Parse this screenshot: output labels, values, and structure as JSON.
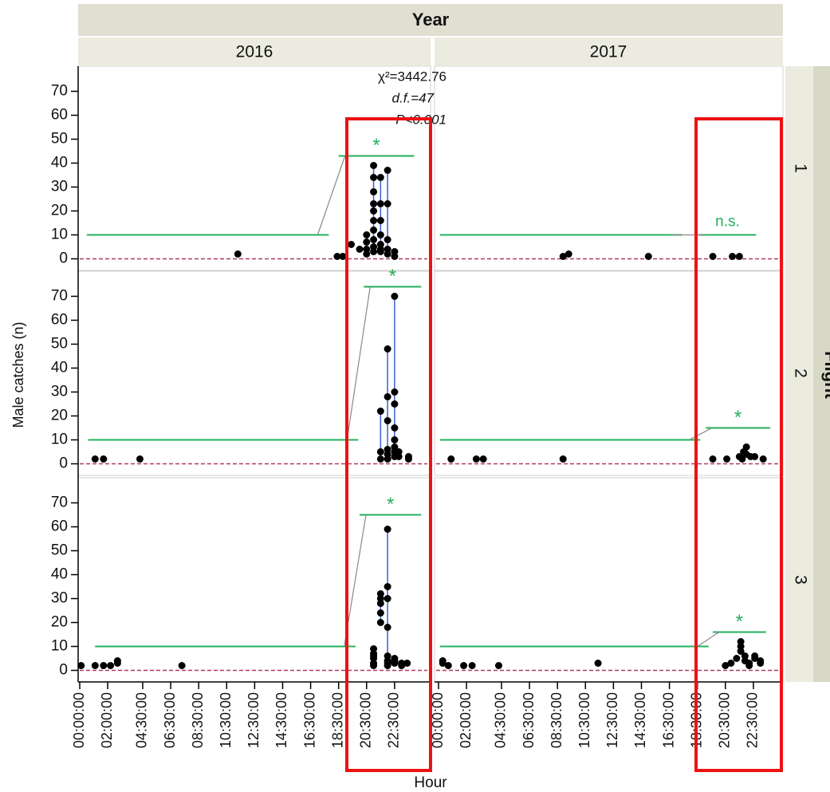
{
  "chart_data": {
    "type": "scatter",
    "title": "Year",
    "columns": [
      "2016",
      "2017"
    ],
    "row_title": "Flight",
    "rows": [
      "1",
      "2",
      "3"
    ],
    "xlabel": "Hour",
    "ylabel": "Male catches (n)",
    "annotations": [
      "χ²=3442.76",
      "d.f.=47",
      "P<0.001"
    ],
    "xlim": [
      0,
      24.5
    ],
    "ylim": [
      -4.5,
      80.5
    ],
    "yticks": [
      0,
      10,
      20,
      30,
      40,
      50,
      60,
      70
    ],
    "xticks": [
      {
        "value": 0,
        "label": "00:00:00"
      },
      {
        "value": 2,
        "label": "02:00:00"
      },
      {
        "value": 4.5,
        "label": "04:30:00"
      },
      {
        "value": 6.5,
        "label": "06:30:00"
      },
      {
        "value": 8.5,
        "label": "08:30:00"
      },
      {
        "value": 10.5,
        "label": "10:30:00"
      },
      {
        "value": 12.5,
        "label": "12:30:00"
      },
      {
        "value": 14.5,
        "label": "14:30:00"
      },
      {
        "value": 16.5,
        "label": "16:30:00"
      },
      {
        "value": 18.5,
        "label": "18:30:00"
      },
      {
        "value": 20.5,
        "label": "20:30:00"
      },
      {
        "value": 22.5,
        "label": "22:30:00"
      }
    ],
    "reference_line": 0,
    "point_color": "#000000",
    "range_color": "#3a5fcd",
    "fit_color": "#22b05a",
    "reference_color": "#b03a5a",
    "panels": [
      [
        {
          "x": [
            11.3,
            18.4,
            18.8,
            19.4,
            20.0,
            20.5,
            20.5,
            20.5,
            20.5,
            21.0,
            21.0,
            21.0,
            21.0,
            21.0,
            21.0,
            21.0,
            21.0,
            21.0,
            21.0,
            21.5,
            21.5,
            21.5,
            21.5,
            21.5,
            21.5,
            21.5,
            22.0,
            22.0,
            22.0,
            22.0,
            22.0,
            22.5,
            22.5
          ],
          "y": [
            2,
            1,
            1,
            6,
            4,
            10,
            7,
            4,
            2,
            39,
            34,
            28,
            23,
            20,
            16,
            12,
            8,
            5,
            3,
            34,
            23,
            16,
            10,
            6,
            4,
            3,
            37,
            23,
            8,
            4,
            2,
            3,
            1
          ],
          "fits": [
            {
              "x": [
                0.5,
                17.8
              ],
              "y": 10
            },
            {
              "x": [
                18.5,
                23.9
              ],
              "y": 43,
              "label": "*"
            }
          ]
        },
        {
          "x": [
            8.9,
            9.3,
            15.0,
            19.6,
            21.0,
            21.5
          ],
          "y": [
            1,
            2,
            1,
            1,
            1,
            1
          ],
          "fits": [
            {
              "x": [
                0.1,
                17.4
              ],
              "y": 10
            },
            {
              "x": [
                18.6,
                22.7
              ],
              "y": 10,
              "label": "n.s."
            }
          ]
        }
      ],
      [
        {
          "x": [
            1.1,
            1.7,
            4.3,
            21.5,
            21.5,
            21.5,
            22.0,
            22.0,
            22.0,
            22.0,
            22.0,
            22.0,
            22.5,
            22.5,
            22.5,
            22.5,
            22.5,
            22.5,
            22.5,
            22.5,
            22.8,
            22.8,
            23.5,
            23.5
          ],
          "y": [
            2,
            2,
            2,
            22,
            5,
            2,
            48,
            28,
            18,
            6,
            4,
            2,
            70,
            30,
            25,
            15,
            10,
            7,
            5,
            3,
            5,
            3,
            3,
            2
          ],
          "fits": [
            {
              "x": [
                0.6,
                19.9
              ],
              "y": 10
            },
            {
              "x": [
                20.3,
                24.4
              ],
              "y": 74,
              "label": "*"
            }
          ]
        },
        {
          "x": [
            0.9,
            2.7,
            3.2,
            8.9,
            19.6,
            20.6,
            21.5,
            21.7,
            21.8,
            22.0,
            22.0,
            22.3,
            22.6,
            23.2
          ],
          "y": [
            2,
            2,
            2,
            2,
            2,
            2,
            3,
            2,
            5,
            7,
            4,
            3,
            3,
            2
          ],
          "fits": [
            {
              "x": [
                0.1,
                18.7
              ],
              "y": 10
            },
            {
              "x": [
                19.1,
                23.7
              ],
              "y": 15,
              "label": "*"
            }
          ]
        }
      ],
      [
        {
          "x": [
            0.1,
            1.1,
            1.7,
            2.2,
            2.7,
            2.7,
            7.3,
            21.0,
            21.0,
            21.0,
            21.0,
            21.0,
            21.0,
            21.5,
            21.5,
            21.5,
            21.5,
            21.5,
            22.0,
            22.0,
            22.0,
            22.0,
            22.0,
            22.0,
            22.0,
            22.0,
            22.5,
            22.5,
            22.5,
            23.0,
            23.0,
            23.4
          ],
          "y": [
            2,
            2,
            2,
            2,
            3,
            4,
            2,
            9,
            7,
            6,
            5,
            3,
            2,
            32,
            30,
            28,
            24,
            20,
            59,
            35,
            30,
            18,
            6,
            4,
            3,
            2,
            5,
            4,
            3,
            3,
            2,
            3
          ],
          "fits": [
            {
              "x": [
                1.1,
                19.7
              ],
              "y": 10
            },
            {
              "x": [
                20.0,
                24.4
              ],
              "y": 65,
              "label": "*"
            }
          ]
        },
        {
          "x": [
            0.3,
            0.3,
            0.7,
            1.8,
            2.4,
            4.3,
            11.4,
            20.5,
            20.9,
            21.3,
            21.6,
            21.6,
            21.6,
            21.9,
            21.9,
            22.2,
            22.2,
            22.6,
            22.6,
            23.0,
            23.0
          ],
          "y": [
            4,
            3,
            2,
            2,
            2,
            2,
            3,
            2,
            3,
            5,
            12,
            10,
            8,
            6,
            4,
            3,
            2,
            6,
            5,
            4,
            3
          ],
          "fits": [
            {
              "x": [
                0.1,
                19.3
              ],
              "y": 10
            },
            {
              "x": [
                19.6,
                23.4
              ],
              "y": 16,
              "label": "*"
            }
          ]
        }
      ]
    ]
  }
}
